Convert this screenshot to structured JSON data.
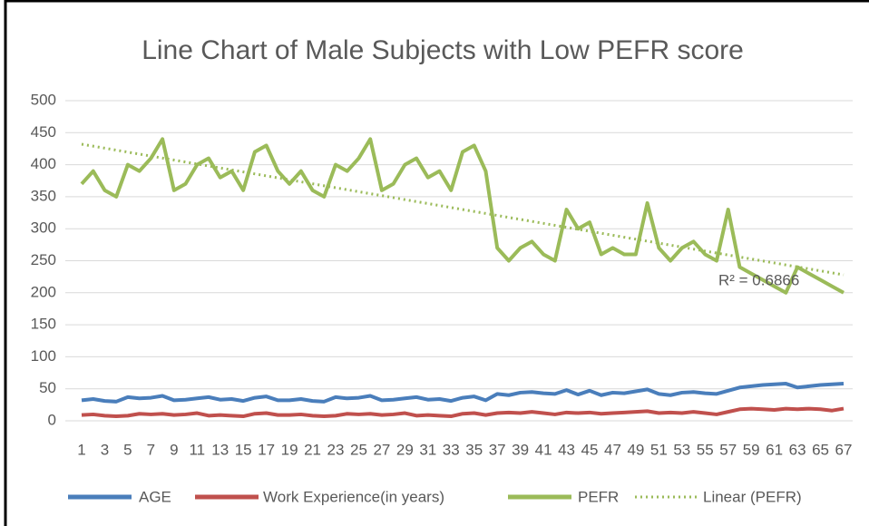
{
  "chart_data": {
    "type": "line",
    "title": "Line Chart of Male Subjects with Low PEFR score",
    "categories": [
      1,
      null,
      3,
      null,
      5,
      null,
      7,
      null,
      9,
      null,
      11,
      null,
      13,
      null,
      15,
      null,
      17,
      null,
      19,
      null,
      21,
      null,
      23,
      null,
      25,
      null,
      27,
      null,
      29,
      null,
      31,
      null,
      33,
      null,
      35,
      null,
      37,
      null,
      39,
      null,
      41,
      null,
      43,
      null,
      45,
      null,
      47,
      null,
      49,
      null,
      51,
      null,
      53,
      null,
      55,
      null,
      57,
      null,
      59,
      null,
      61,
      null,
      63,
      null,
      65,
      null,
      67
    ],
    "series": [
      {
        "name": "AGE",
        "color": "#4a7ebb",
        "values": [
          32,
          34,
          31,
          30,
          37,
          35,
          36,
          39,
          32,
          33,
          35,
          37,
          33,
          34,
          31,
          36,
          38,
          32,
          32,
          34,
          31,
          30,
          37,
          35,
          36,
          39,
          32,
          33,
          35,
          37,
          33,
          34,
          31,
          36,
          38,
          32,
          42,
          40,
          44,
          45,
          43,
          42,
          48,
          41,
          47,
          40,
          44,
          43,
          46,
          49,
          42,
          40,
          44,
          45,
          43,
          42,
          47,
          52,
          54,
          56,
          57,
          58,
          52,
          54,
          56,
          57,
          58
        ]
      },
      {
        "name": "Work Experience(in years)",
        "color": "#c0504d",
        "values": [
          9,
          10,
          8,
          7,
          8,
          11,
          10,
          11,
          9,
          10,
          12,
          8,
          9,
          8,
          7,
          11,
          12,
          9,
          9,
          10,
          8,
          7,
          8,
          11,
          10,
          11,
          9,
          10,
          12,
          8,
          9,
          8,
          7,
          11,
          12,
          9,
          12,
          13,
          12,
          14,
          12,
          10,
          13,
          12,
          13,
          11,
          12,
          13,
          14,
          15,
          12,
          13,
          12,
          14,
          12,
          10,
          14,
          18,
          19,
          18,
          17,
          19,
          18,
          19,
          18,
          16,
          19
        ]
      },
      {
        "name": "PEFR",
        "color": "#9bbb59",
        "values": [
          370,
          390,
          360,
          350,
          400,
          390,
          410,
          440,
          360,
          370,
          400,
          410,
          380,
          390,
          360,
          420,
          430,
          390,
          370,
          390,
          360,
          350,
          400,
          390,
          410,
          440,
          360,
          370,
          400,
          410,
          380,
          390,
          360,
          420,
          430,
          390,
          270,
          250,
          270,
          280,
          260,
          250,
          330,
          300,
          310,
          260,
          270,
          260,
          260,
          340,
          270,
          250,
          270,
          280,
          260,
          250,
          330,
          240,
          230,
          220,
          210,
          200,
          240,
          230,
          220,
          210,
          200
        ]
      }
    ],
    "trendline": {
      "name": "Linear (PEFR)",
      "color": "#9bbb59",
      "values": [
        432,
        228
      ]
    },
    "annotation": "R² = 0.6866",
    "ylim": [
      0,
      500
    ],
    "yticks": [
      0,
      50,
      100,
      150,
      200,
      250,
      300,
      350,
      400,
      450,
      500
    ],
    "grid": true
  }
}
